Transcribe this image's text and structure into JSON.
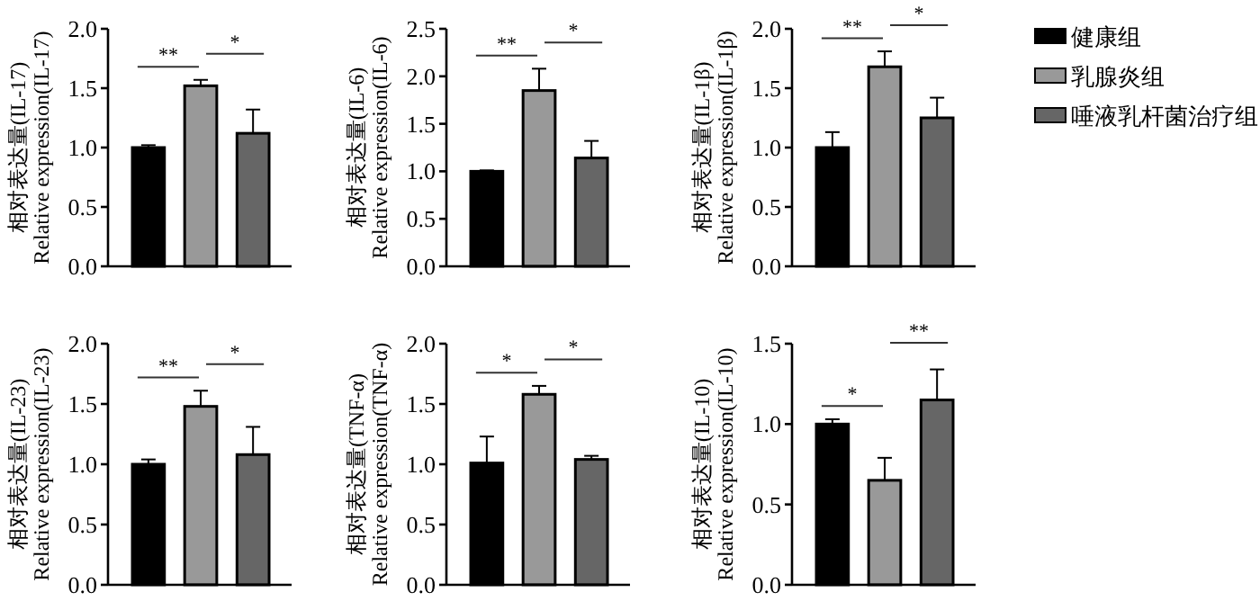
{
  "chart_data": [
    {
      "type": "bar",
      "ylabel": "相对表达量(IL-17)\nRelative expression(IL-17)",
      "categories": [
        null
      ],
      "ylim": [
        0,
        2
      ],
      "yticks": [
        {
          "value": 0,
          "label": "0.0"
        },
        {
          "value": 0.5,
          "label": "0.5"
        },
        {
          "value": 1,
          "label": "1.0"
        },
        {
          "value": 1.5,
          "label": "1.5"
        },
        {
          "value": 2,
          "label": "2.0"
        }
      ],
      "annotations": [
        "**",
        "*"
      ],
      "series": [
        {
          "color": "#000000",
          "values": [
            1.0
          ],
          "errors": [
            [
              1.0,
              1.02
            ]
          ]
        },
        {
          "color": "#999999",
          "values": [
            1.52
          ],
          "errors": [
            [
              1.52,
              1.57
            ]
          ]
        },
        {
          "color": "#666666",
          "values": [
            1.12
          ],
          "errors": [
            [
              1.12,
              1.32
            ]
          ]
        }
      ]
    },
    {
      "type": "bar",
      "ylabel": "相对表达量(IL-6)\nRelative expression(IL-6)",
      "categories": [
        null
      ],
      "ylim": [
        0,
        2.5
      ],
      "yticks": [
        {
          "value": 0,
          "label": "0.0"
        },
        {
          "value": 0.5,
          "label": "0.5"
        },
        {
          "value": 1,
          "label": "1.0"
        },
        {
          "value": 1.5,
          "label": "1.5"
        },
        {
          "value": 2,
          "label": "2.0"
        },
        {
          "value": 2.5,
          "label": "2.5"
        }
      ],
      "annotations": [
        "**",
        "*"
      ],
      "series": [
        {
          "color": "#000000",
          "values": [
            1.0
          ],
          "errors": [
            [
              1.0,
              1.01
            ]
          ]
        },
        {
          "color": "#999999",
          "values": [
            1.85
          ],
          "errors": [
            [
              1.85,
              2.08
            ]
          ]
        },
        {
          "color": "#666666",
          "values": [
            1.14
          ],
          "errors": [
            [
              1.14,
              1.32
            ]
          ]
        }
      ]
    },
    {
      "type": "bar",
      "ylabel": "相对表达量(IL-1β)\nRelative expression(IL-1β)",
      "categories": [
        null
      ],
      "ylim": [
        0,
        2
      ],
      "yticks": [
        {
          "value": 0,
          "label": "0.0"
        },
        {
          "value": 0.5,
          "label": "0.5"
        },
        {
          "value": 1,
          "label": "1.0"
        },
        {
          "value": 1.5,
          "label": "1.5"
        },
        {
          "value": 2,
          "label": "2.0"
        }
      ],
      "annotations": [
        "**",
        "*"
      ],
      "legend": "right",
      "series": [
        {
          "name": "健康组",
          "color": "#000000",
          "values": [
            1.0
          ],
          "errors": [
            [
              1.0,
              1.13
            ]
          ]
        },
        {
          "name": "乳腺炎组",
          "color": "#999999",
          "values": [
            1.68
          ],
          "errors": [
            [
              1.68,
              1.81
            ]
          ]
        },
        {
          "name": "唾液乳杆菌治疗组",
          "color": "#666666",
          "values": [
            1.25
          ],
          "errors": [
            [
              1.25,
              1.42
            ]
          ]
        }
      ]
    },
    {
      "type": "bar",
      "ylabel": "相对表达量(IL-23)\nRelative expression(IL-23)",
      "categories": [
        null
      ],
      "ylim": [
        0,
        2
      ],
      "yticks": [
        {
          "value": 0,
          "label": "0.0"
        },
        {
          "value": 0.5,
          "label": "0.5"
        },
        {
          "value": 1,
          "label": "1.0"
        },
        {
          "value": 1.5,
          "label": "1.5"
        },
        {
          "value": 2,
          "label": "2.0"
        }
      ],
      "annotations": [
        "**",
        "*"
      ],
      "series": [
        {
          "color": "#000000",
          "values": [
            1.0
          ],
          "errors": [
            [
              1.0,
              1.04
            ]
          ]
        },
        {
          "color": "#999999",
          "values": [
            1.48
          ],
          "errors": [
            [
              1.48,
              1.61
            ]
          ]
        },
        {
          "color": "#666666",
          "values": [
            1.08
          ],
          "errors": [
            [
              1.08,
              1.31
            ]
          ]
        }
      ]
    },
    {
      "type": "bar",
      "ylabel": "相对表达量(TNF-α)\nRelative expression(TNF-α)",
      "categories": [
        null
      ],
      "ylim": [
        0,
        2
      ],
      "yticks": [
        {
          "value": 0,
          "label": "0.0"
        },
        {
          "value": 0.5,
          "label": "0.5"
        },
        {
          "value": 1,
          "label": "1.0"
        },
        {
          "value": 1.5,
          "label": "1.5"
        },
        {
          "value": 2,
          "label": "2.0"
        }
      ],
      "annotations": [
        "*",
        "*"
      ],
      "series": [
        {
          "color": "#000000",
          "values": [
            1.01
          ],
          "errors": [
            [
              1.01,
              1.23
            ]
          ]
        },
        {
          "color": "#999999",
          "values": [
            1.58
          ],
          "errors": [
            [
              1.58,
              1.65
            ]
          ]
        },
        {
          "color": "#666666",
          "values": [
            1.04
          ],
          "errors": [
            [
              1.04,
              1.07
            ]
          ]
        }
      ]
    },
    {
      "type": "bar",
      "ylabel": "相对表达量(IL-10)\nRelative expression(IL-10)",
      "categories": [
        null
      ],
      "ylim": [
        0,
        1.5
      ],
      "yticks": [
        {
          "value": 0,
          "label": "0.0"
        },
        {
          "value": 0.5,
          "label": "0.5"
        },
        {
          "value": 1,
          "label": "1.0"
        },
        {
          "value": 1.5,
          "label": "1.5"
        }
      ],
      "annotations": [
        "*",
        "**"
      ],
      "series": [
        {
          "color": "#000000",
          "values": [
            1.0
          ],
          "errors": [
            [
              1.0,
              1.03
            ]
          ]
        },
        {
          "color": "#999999",
          "values": [
            0.65
          ],
          "errors": [
            [
              0.65,
              0.79
            ]
          ]
        },
        {
          "color": "#666666",
          "values": [
            1.15
          ],
          "errors": [
            [
              1.15,
              1.34
            ]
          ]
        }
      ]
    }
  ]
}
